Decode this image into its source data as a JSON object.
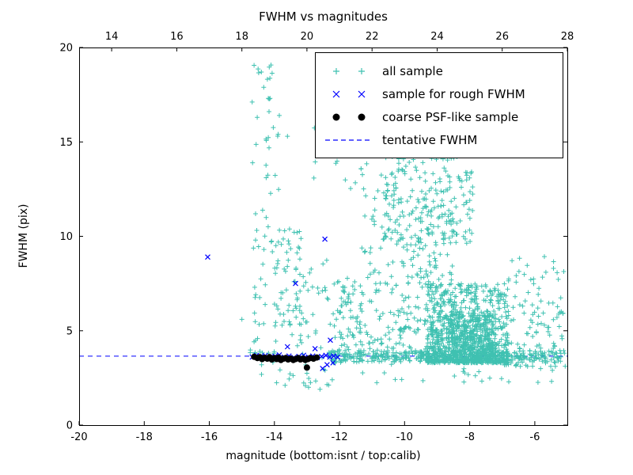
{
  "chart_data": {
    "type": "scatter",
    "title": "FWHM vs magnitudes",
    "xlabel": "magnitude (bottom:isnt / top:calib)",
    "ylabel": "FWHM (pix)",
    "xlim": [
      -20,
      -5
    ],
    "x2lim": [
      13,
      28
    ],
    "ylim": [
      0,
      20
    ],
    "xticks": [
      -20,
      -18,
      -16,
      -14,
      -12,
      -10,
      -8,
      -6
    ],
    "x2ticks": [
      14,
      16,
      18,
      20,
      22,
      24,
      26,
      28
    ],
    "yticks": [
      0,
      5,
      10,
      15,
      20
    ],
    "grid": false,
    "legend_position": "upper-right",
    "tentative_fwhm": 3.65,
    "colors": {
      "all_sample": "#3fc1b1",
      "rough": "#0000ff",
      "psf": "#000000",
      "line": "#0000ff"
    },
    "legend": [
      {
        "label": "all sample",
        "marker": "plus",
        "color": "#3fc1b1"
      },
      {
        "label": "sample for rough FWHM",
        "marker": "x",
        "color": "#0000ff"
      },
      {
        "label": "coarse PSF-like sample",
        "marker": "dot",
        "color": "#000000"
      },
      {
        "label": "tentative FWHM",
        "marker": "dashed",
        "color": "#0000ff"
      }
    ],
    "all_sample": {
      "seed": 7,
      "clusters": [
        {
          "n": 70,
          "x": [
            -14.75,
            -13.85
          ],
          "y": [
            3.8,
            19.2
          ],
          "xp": 1,
          "yp": 1.6
        },
        {
          "n": 60,
          "x": [
            -14.05,
            -13.15
          ],
          "y": [
            4.2,
            10.5
          ],
          "xp": 1,
          "yp": 1.3
        },
        {
          "n": 45,
          "x": [
            -13.3,
            -12.2
          ],
          "y": [
            2.0,
            10.0
          ],
          "xp": 1,
          "yp": 1.2
        },
        {
          "n": 12,
          "x": [
            -14.8,
            -13.0
          ],
          "y": [
            2.0,
            3.4
          ],
          "xp": 1,
          "yp": 1
        },
        {
          "n": 850,
          "x": [
            -9.3,
            -6.8
          ],
          "y": [
            3.3,
            7.5
          ],
          "xp": 1,
          "yp": 1.9
        },
        {
          "n": 300,
          "x": [
            -8.6,
            -7.2
          ],
          "y": [
            3.4,
            6.0
          ],
          "xp": 1,
          "yp": 1.5
        },
        {
          "n": 330,
          "x": [
            -11.4,
            -8.5
          ],
          "y": [
            3.5,
            12.5
          ],
          "xp": 0.8,
          "yp": 1.7
        },
        {
          "n": 200,
          "x": [
            -10.6,
            -7.9
          ],
          "y": [
            9.5,
            15.2
          ],
          "xp": 1,
          "yp": 1.1
        },
        {
          "n": 130,
          "x": [
            -6.95,
            -5.05
          ],
          "y": [
            3.1,
            9.0
          ],
          "xp": 1,
          "yp": 1.5
        },
        {
          "n": 260,
          "x": [
            -12.4,
            -5.1
          ],
          "y": [
            3.35,
            3.95
          ],
          "xp": 1,
          "yp": 1
        },
        {
          "n": 30,
          "x": [
            -12.8,
            -9.8
          ],
          "y": [
            12.5,
            17.5
          ],
          "xp": 1,
          "yp": 1
        },
        {
          "n": 10,
          "x": [
            -12.5,
            -8.5
          ],
          "y": [
            15.5,
            19.0
          ],
          "xp": 1,
          "yp": 1
        },
        {
          "n": 90,
          "x": [
            -12.2,
            -11.3
          ],
          "y": [
            3.3,
            8.0
          ],
          "xp": 1,
          "yp": 1.4
        },
        {
          "n": 25,
          "x": [
            -11.5,
            -5.2
          ],
          "y": [
            2.2,
            3.3
          ],
          "xp": 1,
          "yp": 1
        }
      ],
      "outliers": [
        [
          -15.0,
          5.6
        ],
        [
          -14.4,
          18.7
        ],
        [
          -13.85,
          16.4
        ],
        [
          -13.6,
          15.3
        ],
        [
          -12.95,
          2.0
        ],
        [
          -12.6,
          1.9
        ]
      ]
    },
    "rough_points": [
      [
        -16.05,
        8.9
      ],
      [
        -13.35,
        7.5
      ],
      [
        -12.45,
        9.85
      ],
      [
        -12.28,
        4.5
      ],
      [
        -12.52,
        3.0
      ],
      [
        -12.38,
        3.2
      ],
      [
        -14.68,
        3.6
      ],
      [
        -14.55,
        3.7
      ],
      [
        -14.42,
        3.62
      ],
      [
        -14.28,
        3.68
      ],
      [
        -14.12,
        3.58
      ],
      [
        -13.98,
        3.65
      ],
      [
        -13.85,
        3.72
      ],
      [
        -13.7,
        3.6
      ],
      [
        -13.55,
        3.66
      ],
      [
        -13.4,
        3.58
      ],
      [
        -13.25,
        3.64
      ],
      [
        -13.1,
        3.7
      ],
      [
        -12.95,
        3.6
      ],
      [
        -12.82,
        3.66
      ],
      [
        -12.68,
        3.58
      ],
      [
        -12.55,
        3.64
      ],
      [
        -12.42,
        3.7
      ],
      [
        -12.3,
        3.6
      ],
      [
        -12.18,
        3.66
      ],
      [
        -12.06,
        3.6
      ],
      [
        -12.75,
        4.05
      ],
      [
        -13.6,
        4.15
      ],
      [
        -12.2,
        3.3
      ]
    ],
    "psf_points": [
      [
        -14.62,
        3.62
      ],
      [
        -14.52,
        3.55
      ],
      [
        -14.45,
        3.6
      ],
      [
        -14.38,
        3.5
      ],
      [
        -14.3,
        3.57
      ],
      [
        -14.22,
        3.52
      ],
      [
        -14.15,
        3.6
      ],
      [
        -14.08,
        3.48
      ],
      [
        -14.0,
        3.55
      ],
      [
        -13.93,
        3.5
      ],
      [
        -13.87,
        3.58
      ],
      [
        -13.8,
        3.45
      ],
      [
        -13.72,
        3.52
      ],
      [
        -13.65,
        3.55
      ],
      [
        -13.58,
        3.48
      ],
      [
        -13.5,
        3.52
      ],
      [
        -13.42,
        3.45
      ],
      [
        -13.35,
        3.5
      ],
      [
        -13.27,
        3.55
      ],
      [
        -13.2,
        3.48
      ],
      [
        -13.12,
        3.52
      ],
      [
        -13.05,
        3.45
      ],
      [
        -12.97,
        3.5
      ],
      [
        -12.9,
        3.55
      ],
      [
        -12.8,
        3.52
      ],
      [
        -12.7,
        3.58
      ],
      [
        -13.0,
        3.05
      ]
    ]
  }
}
